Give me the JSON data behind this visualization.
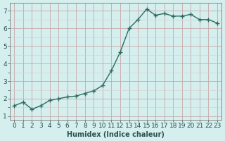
{
  "x": [
    0,
    1,
    2,
    3,
    4,
    5,
    6,
    7,
    8,
    9,
    10,
    11,
    12,
    13,
    14,
    15,
    16,
    17,
    18,
    19,
    20,
    21,
    22,
    23
  ],
  "y": [
    1.6,
    1.8,
    1.4,
    1.6,
    1.9,
    2.0,
    2.1,
    2.15,
    2.3,
    2.45,
    2.75,
    3.6,
    4.65,
    6.0,
    6.5,
    7.1,
    6.75,
    6.85,
    6.7,
    6.7,
    6.8,
    6.5,
    6.5,
    6.3
  ],
  "line_color": "#2d6b62",
  "marker": "+",
  "marker_size": 4,
  "bg_color": "#d4efed",
  "grid_major_color": "#c8a8a8",
  "grid_minor_color": "#ddc8c8",
  "xlabel": "Humidex (Indice chaleur)",
  "xlim": [
    -0.5,
    23.5
  ],
  "ylim": [
    0.8,
    7.45
  ],
  "yticks": [
    1,
    2,
    3,
    4,
    5,
    6,
    7
  ],
  "xticks": [
    0,
    1,
    2,
    3,
    4,
    5,
    6,
    7,
    8,
    9,
    10,
    11,
    12,
    13,
    14,
    15,
    16,
    17,
    18,
    19,
    20,
    21,
    22,
    23
  ],
  "xlabel_fontsize": 7,
  "tick_fontsize": 6.5,
  "line_width": 1.0,
  "spine_color": "#888888",
  "tick_color": "#2d6b62",
  "label_color": "#2d5050"
}
